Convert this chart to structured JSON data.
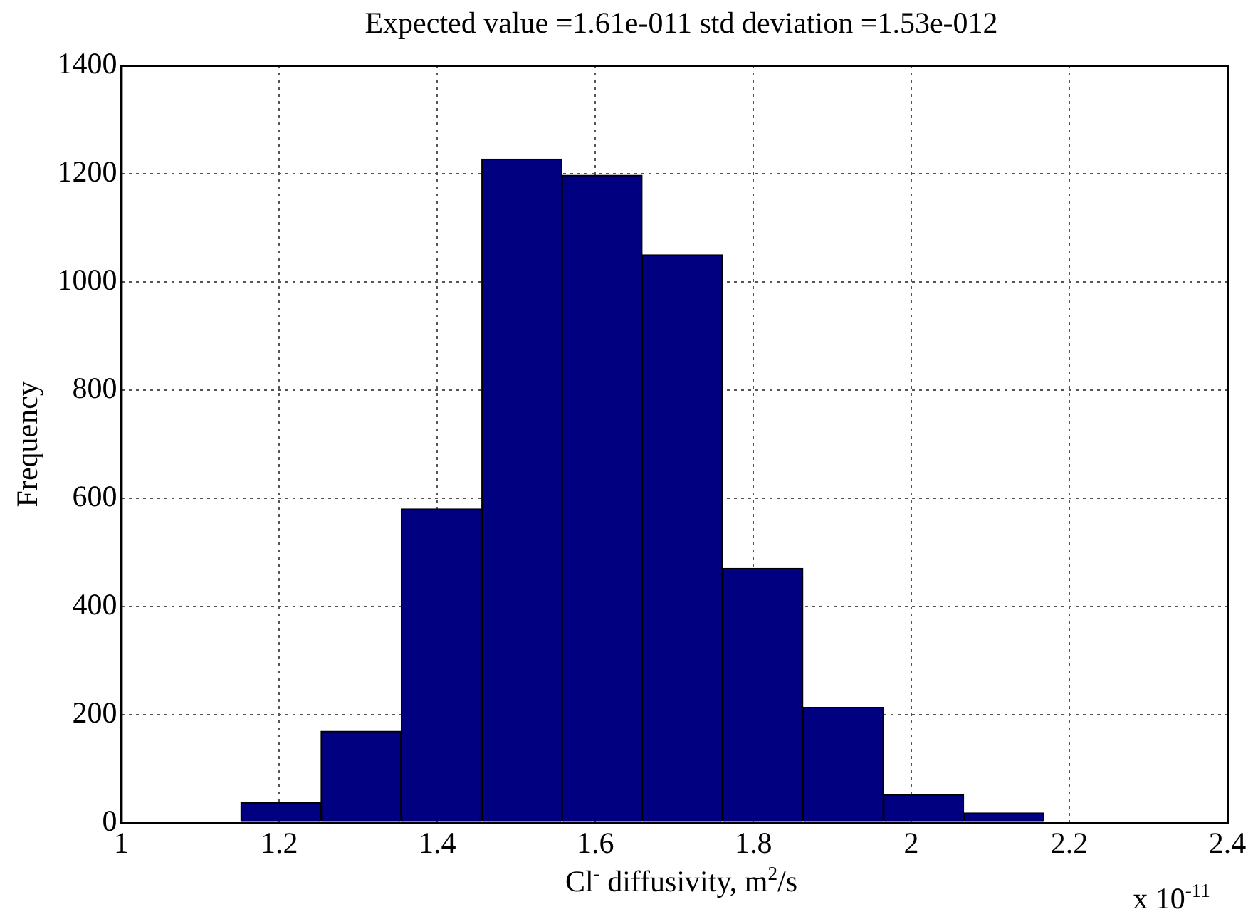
{
  "chart_data": {
    "type": "histogram",
    "title": "Expected value =1.61e-011 std deviation =1.53e-012",
    "xlabel": "Cl$^{-}$ diffusivity, m$^{2}$/s",
    "ylabel": "Frequency",
    "bins": [
      1.151,
      1.253,
      1.354,
      1.456,
      1.558,
      1.659,
      1.761,
      1.863,
      1.965,
      2.066,
      2.168
    ],
    "values": [
      37,
      169,
      580,
      1227,
      1197,
      1050,
      470,
      213,
      52,
      18
    ],
    "color": "#000080",
    "xlim": [
      1,
      2.4
    ],
    "xticks": [
      1,
      1.2,
      1.4,
      1.6,
      1.8,
      2,
      2.2,
      2.4
    ],
    "ylim": [
      0,
      1400
    ],
    "yticks": [
      0,
      200,
      400,
      600,
      800,
      1000,
      1200,
      1400
    ],
    "grid": true,
    "line_style": "dotted",
    "annotations": [
      "x 10$^{-11}$"
    ]
  }
}
